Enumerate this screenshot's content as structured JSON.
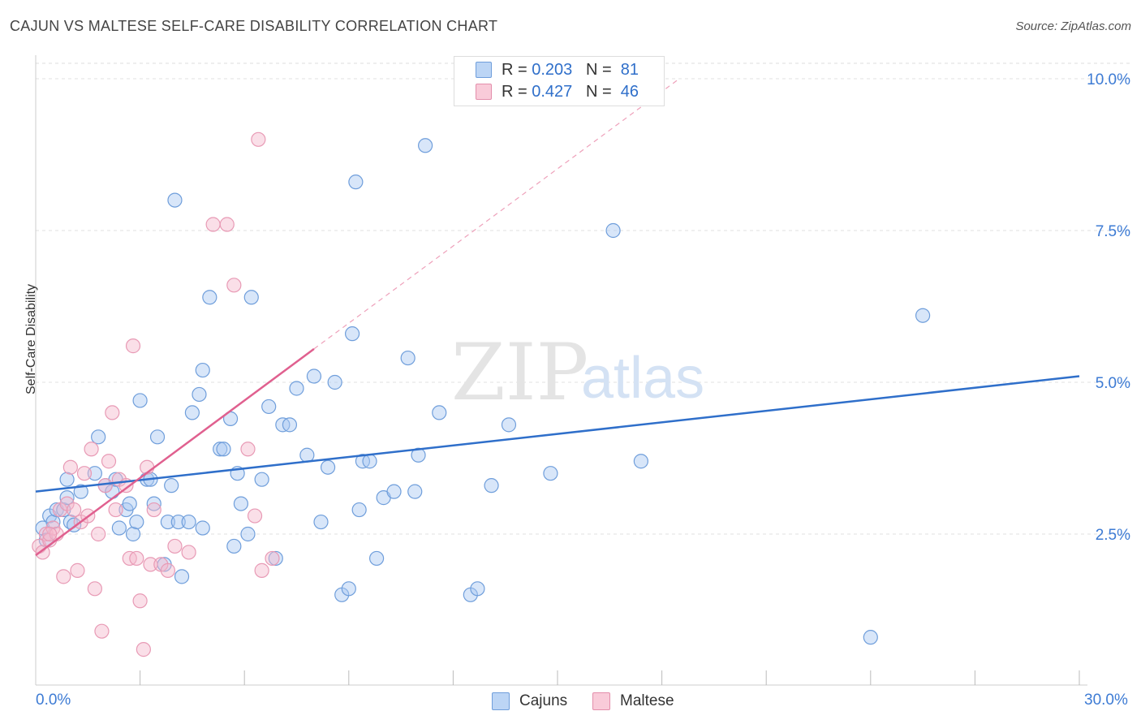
{
  "title": "CAJUN VS MALTESE SELF-CARE DISABILITY CORRELATION CHART",
  "source": "Source: ZipAtlas.com",
  "colors": {
    "blue": "#2f6fca",
    "blue_fill": "#a9c8f2",
    "pink": "#e0608f",
    "pink_fill": "#f5b8cc",
    "axis_label": "#3d7bd4"
  },
  "legend": {
    "rows": [
      {
        "r_label": "R = ",
        "r_value": "0.203",
        "n_label": "N = ",
        "n_value": "81"
      },
      {
        "r_label": "R = ",
        "r_value": "0.427",
        "n_label": "N = ",
        "n_value": "46"
      }
    ]
  },
  "bottom_legend": {
    "cajuns": "Cajuns",
    "maltese": "Maltese"
  },
  "watermark": {
    "zip": "ZIP",
    "atlas": "atlas"
  },
  "chart_data": {
    "type": "scatter",
    "title": "CAJUN VS MALTESE SELF-CARE DISABILITY CORRELATION CHART",
    "xlabel": "",
    "ylabel": "Self-Care Disability",
    "xlim": [
      0,
      30
    ],
    "ylim": [
      0,
      10.5
    ],
    "x_tick_labels": [
      "0.0%",
      "30.0%"
    ],
    "y_ticks": [
      2.5,
      5.0,
      7.5,
      10.0
    ],
    "y_tick_labels": [
      "2.5%",
      "5.0%",
      "7.5%",
      "10.0%"
    ],
    "grid": true,
    "legend_position": "top-center",
    "series": [
      {
        "name": "Cajuns",
        "color": "#2f6fca",
        "trend": {
          "x": [
            0,
            30
          ],
          "y": [
            3.2,
            5.1
          ]
        },
        "points": [
          [
            0.2,
            2.6
          ],
          [
            0.3,
            2.4
          ],
          [
            0.4,
            2.8
          ],
          [
            0.5,
            2.7
          ],
          [
            0.6,
            2.9
          ],
          [
            0.8,
            2.9
          ],
          [
            0.9,
            3.1
          ],
          [
            1.0,
            2.7
          ],
          [
            1.1,
            2.65
          ],
          [
            1.3,
            3.2
          ],
          [
            0.9,
            3.4
          ],
          [
            1.7,
            3.5
          ],
          [
            1.8,
            4.1
          ],
          [
            2.0,
            3.3
          ],
          [
            2.2,
            3.2
          ],
          [
            2.3,
            3.4
          ],
          [
            2.4,
            2.6
          ],
          [
            2.6,
            2.9
          ],
          [
            2.7,
            3.0
          ],
          [
            2.8,
            2.5
          ],
          [
            2.9,
            2.7
          ],
          [
            3.0,
            4.7
          ],
          [
            3.2,
            3.4
          ],
          [
            3.4,
            3.0
          ],
          [
            3.3,
            3.4
          ],
          [
            3.5,
            4.1
          ],
          [
            3.7,
            2.0
          ],
          [
            3.8,
            2.7
          ],
          [
            3.9,
            3.3
          ],
          [
            4.0,
            8.0
          ],
          [
            4.1,
            2.7
          ],
          [
            4.2,
            1.8
          ],
          [
            4.4,
            2.7
          ],
          [
            4.5,
            4.5
          ],
          [
            4.7,
            4.8
          ],
          [
            4.8,
            5.2
          ],
          [
            4.8,
            2.6
          ],
          [
            5.0,
            6.4
          ],
          [
            5.3,
            3.9
          ],
          [
            5.4,
            3.9
          ],
          [
            5.6,
            4.4
          ],
          [
            5.7,
            2.3
          ],
          [
            5.8,
            3.5
          ],
          [
            5.9,
            3.0
          ],
          [
            6.1,
            2.5
          ],
          [
            6.2,
            6.4
          ],
          [
            6.5,
            3.4
          ],
          [
            6.7,
            4.6
          ],
          [
            6.9,
            2.1
          ],
          [
            7.1,
            4.3
          ],
          [
            7.3,
            4.3
          ],
          [
            7.5,
            4.9
          ],
          [
            7.8,
            3.8
          ],
          [
            8.0,
            5.1
          ],
          [
            8.2,
            2.7
          ],
          [
            8.4,
            3.6
          ],
          [
            8.6,
            5.0
          ],
          [
            8.8,
            1.5
          ],
          [
            9.0,
            1.6
          ],
          [
            9.1,
            5.8
          ],
          [
            9.3,
            2.9
          ],
          [
            9.4,
            3.7
          ],
          [
            9.6,
            3.7
          ],
          [
            9.8,
            2.1
          ],
          [
            10.0,
            3.1
          ],
          [
            10.3,
            3.2
          ],
          [
            10.7,
            5.4
          ],
          [
            10.9,
            3.2
          ],
          [
            11.0,
            3.8
          ],
          [
            11.2,
            8.9
          ],
          [
            11.6,
            4.5
          ],
          [
            12.5,
            1.5
          ],
          [
            12.7,
            1.6
          ],
          [
            13.1,
            3.3
          ],
          [
            13.6,
            4.3
          ],
          [
            14.8,
            3.5
          ],
          [
            16.6,
            7.5
          ],
          [
            17.4,
            3.7
          ],
          [
            25.5,
            6.1
          ],
          [
            24.0,
            0.8
          ],
          [
            9.2,
            8.3
          ]
        ]
      },
      {
        "name": "Maltese",
        "color": "#e0608f",
        "trend": {
          "x": [
            0,
            8.0
          ],
          "y": [
            2.15,
            5.55
          ]
        },
        "trend_dashed": {
          "x": [
            8.0,
            18.5
          ],
          "y": [
            5.55,
            10.0
          ]
        },
        "points": [
          [
            0.1,
            2.3
          ],
          [
            0.2,
            2.2
          ],
          [
            0.3,
            2.5
          ],
          [
            0.4,
            2.4
          ],
          [
            0.5,
            2.6
          ],
          [
            0.6,
            2.5
          ],
          [
            0.7,
            2.9
          ],
          [
            0.8,
            1.8
          ],
          [
            0.9,
            3.0
          ],
          [
            1.0,
            3.6
          ],
          [
            1.1,
            2.9
          ],
          [
            1.2,
            1.9
          ],
          [
            1.3,
            2.7
          ],
          [
            1.4,
            3.5
          ],
          [
            1.5,
            2.8
          ],
          [
            1.6,
            3.9
          ],
          [
            1.7,
            1.6
          ],
          [
            1.8,
            2.5
          ],
          [
            1.9,
            0.9
          ],
          [
            2.0,
            3.3
          ],
          [
            2.1,
            3.7
          ],
          [
            2.2,
            4.5
          ],
          [
            2.3,
            2.9
          ],
          [
            2.4,
            3.4
          ],
          [
            2.6,
            3.3
          ],
          [
            2.7,
            2.1
          ],
          [
            2.8,
            5.6
          ],
          [
            2.9,
            2.1
          ],
          [
            3.0,
            1.4
          ],
          [
            3.1,
            0.6
          ],
          [
            3.2,
            3.6
          ],
          [
            3.3,
            2.0
          ],
          [
            3.4,
            2.9
          ],
          [
            3.6,
            2.0
          ],
          [
            3.8,
            1.9
          ],
          [
            4.0,
            2.3
          ],
          [
            4.4,
            2.2
          ],
          [
            5.1,
            7.6
          ],
          [
            5.5,
            7.6
          ],
          [
            5.7,
            6.6
          ],
          [
            6.1,
            3.9
          ],
          [
            6.3,
            2.8
          ],
          [
            6.5,
            1.9
          ],
          [
            6.8,
            2.1
          ],
          [
            6.4,
            9.0
          ],
          [
            0.4,
            2.5
          ]
        ]
      }
    ]
  }
}
